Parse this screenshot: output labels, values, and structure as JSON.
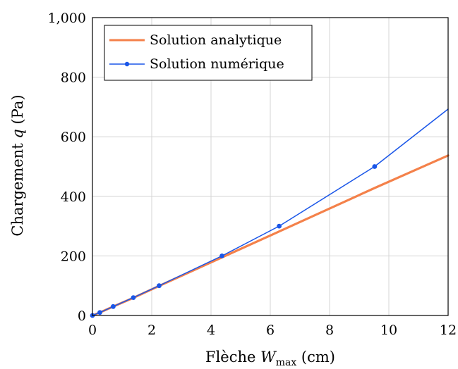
{
  "chart_data": {
    "type": "line",
    "xlabel": {
      "prefix": "Flèche ",
      "symbol": "W",
      "subscript": "max",
      "suffix": " (cm)"
    },
    "ylabel": {
      "prefix": "Chargement ",
      "symbol": "q",
      "suffix": " (Pa)"
    },
    "xlim": [
      0,
      12
    ],
    "ylim": [
      0,
      1000
    ],
    "xticks": [
      0,
      2,
      4,
      6,
      8,
      10,
      12
    ],
    "xtick_labels": [
      "0",
      "2",
      "4",
      "6",
      "8",
      "10",
      "12"
    ],
    "yticks": [
      0,
      200,
      400,
      600,
      800,
      1000
    ],
    "ytick_labels": [
      "0",
      "200",
      "400",
      "600",
      "800",
      "1,000"
    ],
    "grid": true,
    "legend_position": "top-left",
    "series": [
      {
        "name": "Solution analytique",
        "color": "#f4814a",
        "marker": false,
        "x": [
          0,
          0.25,
          0.7,
          1.4,
          2.27,
          4.37,
          6.3,
          9.52,
          12
        ],
        "y": [
          0,
          10,
          30,
          60,
          100,
          195,
          282,
          428,
          537
        ]
      },
      {
        "name": "Solution numérique",
        "color": "#1a56e8",
        "marker": true,
        "x": [
          0,
          0.25,
          0.7,
          1.38,
          2.25,
          4.37,
          6.3,
          9.52,
          12
        ],
        "y": [
          0,
          10,
          30,
          60,
          100,
          200,
          300,
          500,
          693
        ],
        "marker_x": [
          0,
          0.25,
          0.7,
          1.38,
          2.25,
          4.37,
          6.3,
          9.52
        ],
        "marker_y": [
          0,
          10,
          30,
          60,
          100,
          200,
          300,
          500
        ]
      }
    ]
  }
}
